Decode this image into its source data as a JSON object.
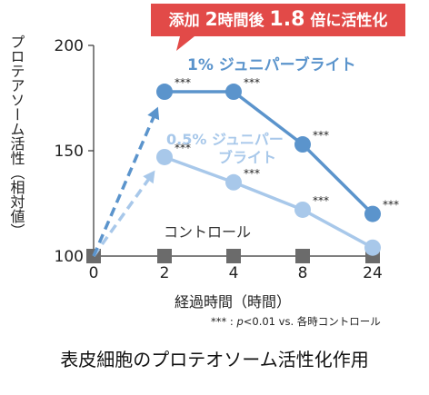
{
  "chart_data": {
    "type": "line",
    "categories": [
      "0",
      "2",
      "4",
      "8",
      "24"
    ],
    "ylim": [
      100,
      200
    ],
    "y_ticks": [
      "100",
      "150",
      "200"
    ],
    "xlabel": "経過時間（時間）",
    "ylabel": "プロテアソーム活性（相対値）",
    "series": [
      {
        "name": "1% ジュニパーブライト",
        "color": "#5b94cc",
        "values": [
          100,
          178,
          178,
          153,
          120
        ],
        "significance": [
          "",
          "***",
          "***",
          "***",
          "***"
        ]
      },
      {
        "name": "0.5% ジュニパーブライト",
        "color": "#a8c8ea",
        "values": [
          100,
          147,
          135,
          122,
          104
        ],
        "significance": [
          "",
          "***",
          "***",
          "***",
          ""
        ]
      },
      {
        "name": "コントロール",
        "color": "#6b6b6b",
        "values": [
          100,
          100,
          100,
          100,
          100
        ]
      }
    ],
    "callout": {
      "prefix": "添加",
      "num1": "2",
      "mid": "時間後",
      "num2": "1.8",
      "suffix": "倍に活性化",
      "color": "#e24a48"
    },
    "series_labels": {
      "s1": "1% ジュニパーブライト",
      "s2_line1": "0.5% ジュニパー",
      "s2_line2": "ブライト",
      "control": "コントロール"
    },
    "footnote": {
      "stars": "***",
      "sep": " : ",
      "p": "p",
      "rest": "<0.01 vs. 各時コントロール"
    },
    "caption": "表皮細胞のプロテオソーム活性化作用"
  }
}
